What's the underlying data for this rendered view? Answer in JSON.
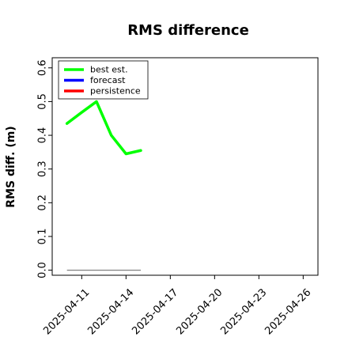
{
  "chart_data": {
    "type": "line",
    "title": "RMS difference",
    "ylabel": "RMS diff. (m)",
    "xlabel": "",
    "ylim": [
      -0.015,
      0.63
    ],
    "xlim": [
      "2025-04-09",
      "2025-04-27"
    ],
    "yticks": [
      "0.0",
      "0.1",
      "0.2",
      "0.3",
      "0.4",
      "0.5",
      "0.6"
    ],
    "xticks": [
      {
        "label": "2025-04-11",
        "color": "#000000"
      },
      {
        "label": "2025-04-14",
        "color": "#000000"
      },
      {
        "label": "2025-04-17",
        "color": "#228B22"
      },
      {
        "label": "2025-04-20",
        "color": "#000000"
      },
      {
        "label": "2025-04-23",
        "color": "#000000"
      },
      {
        "label": "2025-04-26",
        "color": "#000000"
      }
    ],
    "legend_position": "top-left",
    "series": [
      {
        "name": "best est.",
        "color": "#00ff00",
        "x": [
          "2025-04-10",
          "2025-04-11",
          "2025-04-12",
          "2025-04-13",
          "2025-04-14",
          "2025-04-15"
        ],
        "y": [
          0.435,
          0.468,
          0.5,
          0.4,
          0.345,
          0.355
        ]
      },
      {
        "name": "forecast",
        "color": "#0000ff",
        "x": [],
        "y": []
      },
      {
        "name": "persistence",
        "color": "#ff0000",
        "x": [],
        "y": []
      }
    ],
    "reference_line": {
      "color": "#808080",
      "x": [
        "2025-04-10",
        "2025-04-15"
      ],
      "y": [
        0.0,
        0.0
      ]
    }
  }
}
